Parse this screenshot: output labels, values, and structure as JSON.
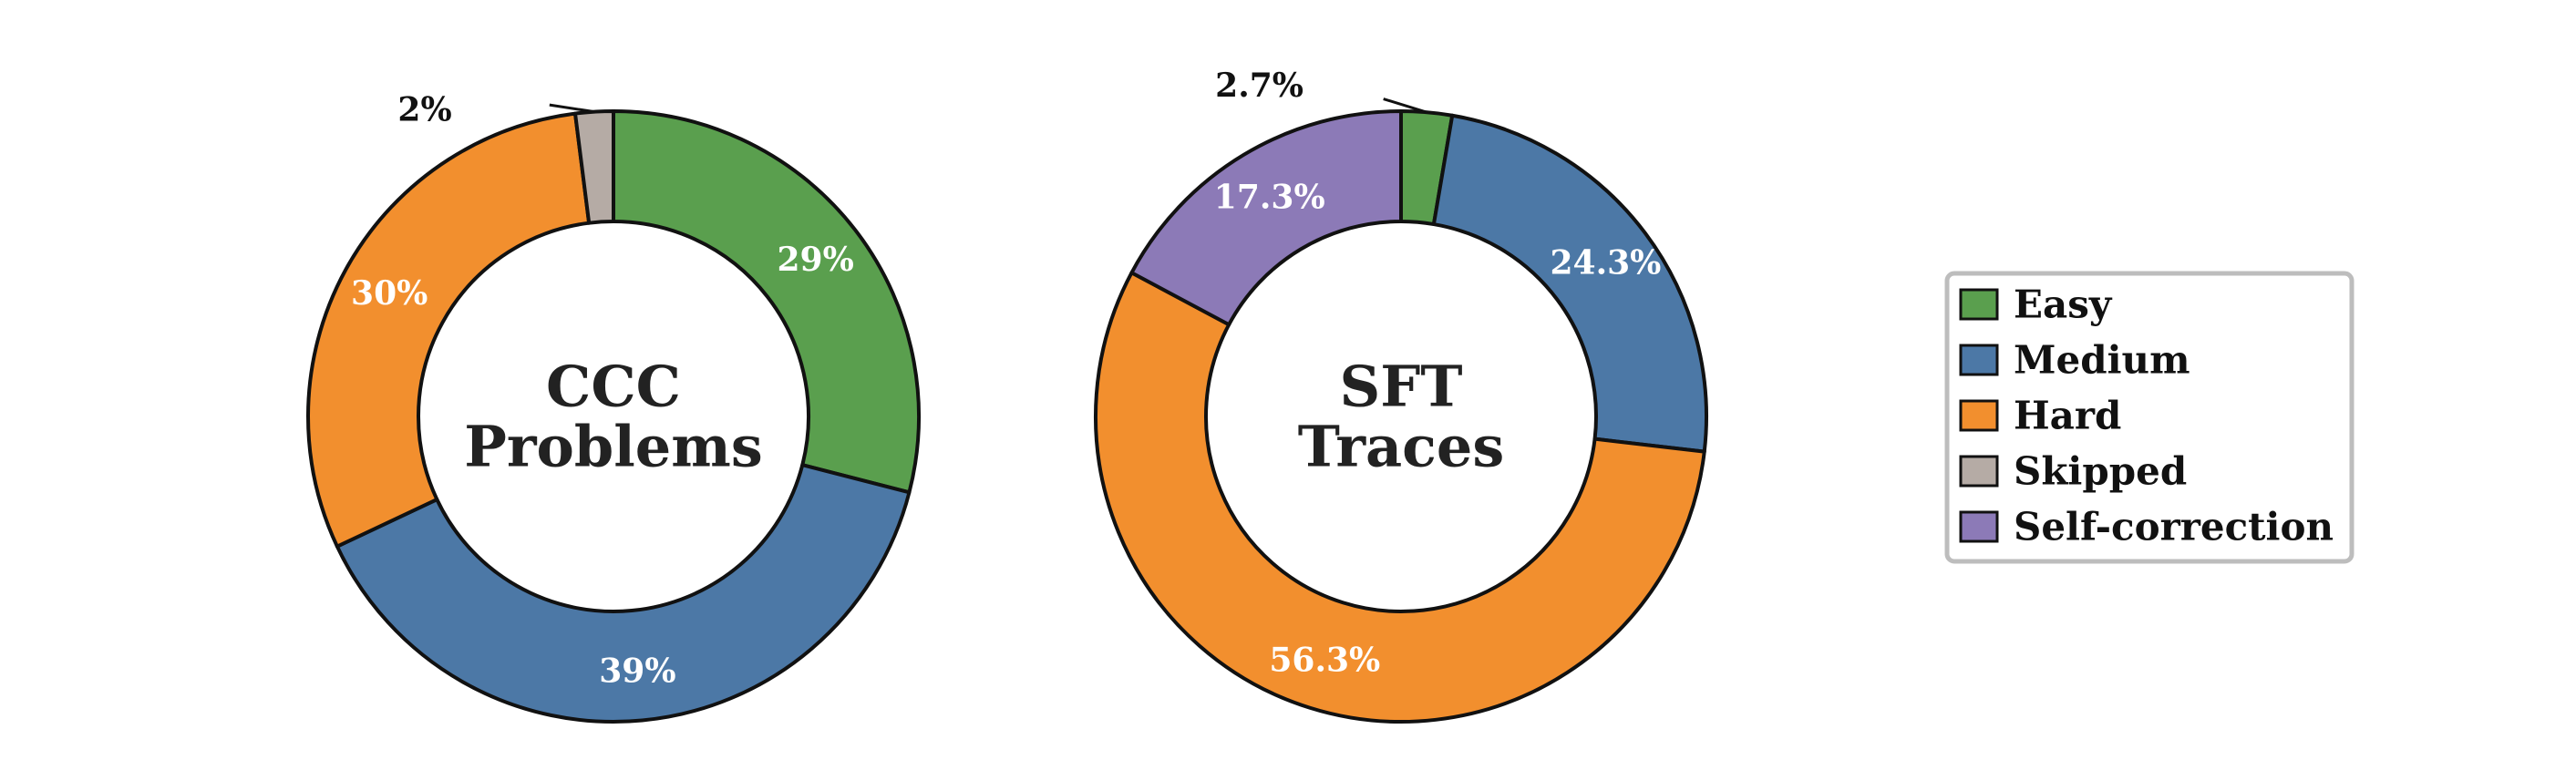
{
  "colors": {
    "Easy": "#5a9f4e",
    "Medium": "#4c78a6",
    "Hard": "#f28f2e",
    "Skipped": "#b5aba5",
    "Self-correction": "#8c7ab7"
  },
  "legend": {
    "entries": [
      "Easy",
      "Medium",
      "Hard",
      "Skipped",
      "Self-correction"
    ],
    "placement": "center-right"
  },
  "chart_data": [
    {
      "type": "pie",
      "donut": true,
      "center_title": [
        "CCC",
        "Problems"
      ],
      "start": "top",
      "direction": "clockwise",
      "slices": [
        {
          "category": "Easy",
          "value": 29,
          "label": "29%"
        },
        {
          "category": "Medium",
          "value": 39,
          "label": "39%"
        },
        {
          "category": "Hard",
          "value": 30,
          "label": "30%"
        },
        {
          "category": "Skipped",
          "value": 2,
          "label": "2%"
        }
      ]
    },
    {
      "type": "pie",
      "donut": true,
      "center_title": [
        "SFT",
        "Traces"
      ],
      "start": "top",
      "direction": "clockwise",
      "slices": [
        {
          "category": "Easy",
          "value": 2.7,
          "label": "2.7%"
        },
        {
          "category": "Medium",
          "value": 24.3,
          "label": "24.3%"
        },
        {
          "category": "Hard",
          "value": 56.3,
          "label": "56.3%"
        },
        {
          "category": "Self-correction",
          "value": 17.3,
          "label": "17.3%"
        }
      ]
    }
  ]
}
